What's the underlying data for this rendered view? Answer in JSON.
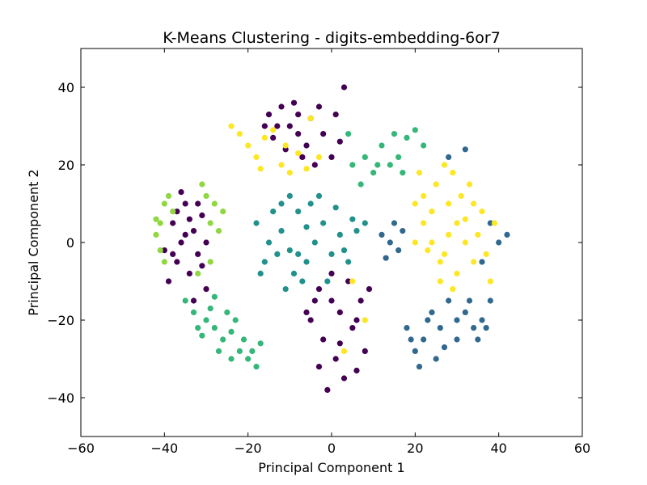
{
  "chart_data": {
    "type": "scatter",
    "title": "K-Means Clustering - digits-embedding-6or7",
    "xlabel": "Principal Component 1",
    "ylabel": "Principal Component 2",
    "xlim": [
      -60,
      60
    ],
    "ylim": [
      -50,
      50
    ],
    "xticks": [
      -60,
      -40,
      -20,
      0,
      20,
      40,
      60
    ],
    "yticks": [
      -40,
      -20,
      0,
      20,
      40
    ],
    "xtick_labels": [
      "−60",
      "−40",
      "−20",
      "0",
      "20",
      "40",
      "60"
    ],
    "ytick_labels": [
      "−40",
      "−20",
      "0",
      "20",
      "40"
    ],
    "grid": false,
    "legend": "none",
    "series": [
      {
        "color": "#440154",
        "points": [
          [
            -40,
            -2
          ],
          [
            -38,
            5
          ],
          [
            -37,
            -5
          ],
          [
            -36,
            0
          ],
          [
            -35,
            10
          ],
          [
            -34,
            -8
          ],
          [
            -33,
            3
          ],
          [
            -32,
            -3
          ],
          [
            -31,
            7
          ],
          [
            -30,
            -12
          ],
          [
            -39,
            -10
          ],
          [
            -36,
            13
          ],
          [
            -33,
            -15
          ],
          [
            -35,
            2
          ],
          [
            -37,
            8
          ],
          [
            -30,
            0
          ],
          [
            -31,
            -6
          ],
          [
            -34,
            6
          ],
          [
            -38,
            -3
          ],
          [
            -32,
            10
          ],
          [
            -15,
            33
          ],
          [
            -12,
            35
          ],
          [
            -10,
            30
          ],
          [
            -8,
            28
          ],
          [
            -6,
            25
          ],
          [
            -14,
            27
          ],
          [
            -11,
            24
          ],
          [
            -5,
            32
          ],
          [
            -3,
            35
          ],
          [
            -8,
            33
          ],
          [
            -13,
            30
          ],
          [
            -2,
            28
          ],
          [
            0,
            22
          ],
          [
            -4,
            20
          ],
          [
            2,
            26
          ],
          [
            -9,
            36
          ],
          [
            -16,
            30
          ],
          [
            -7,
            22
          ],
          [
            1,
            33
          ],
          [
            3,
            40
          ],
          [
            -3,
            -12
          ],
          [
            0,
            -15
          ],
          [
            2,
            -18
          ],
          [
            4,
            -10
          ],
          [
            6,
            -20
          ],
          [
            -5,
            -20
          ],
          [
            -2,
            -25
          ],
          [
            1,
            -30
          ],
          [
            3,
            -35
          ],
          [
            5,
            -22
          ],
          [
            8,
            -28
          ],
          [
            -1,
            -38
          ],
          [
            7,
            -15
          ],
          [
            -4,
            -15
          ],
          [
            9,
            -12
          ],
          [
            0,
            -8
          ],
          [
            -6,
            -18
          ],
          [
            2,
            -26
          ],
          [
            -3,
            -32
          ],
          [
            6,
            -33
          ]
        ]
      },
      {
        "color": "#31688e",
        "points": [
          [
            18,
            -22
          ],
          [
            20,
            -28
          ],
          [
            22,
            -25
          ],
          [
            24,
            -18
          ],
          [
            26,
            -22
          ],
          [
            28,
            -15
          ],
          [
            30,
            -20
          ],
          [
            32,
            -18
          ],
          [
            34,
            -22
          ],
          [
            36,
            -20
          ],
          [
            38,
            -15
          ],
          [
            21,
            -32
          ],
          [
            25,
            -30
          ],
          [
            30,
            -25
          ],
          [
            35,
            -25
          ],
          [
            23,
            -20
          ],
          [
            27,
            -27
          ],
          [
            33,
            -15
          ],
          [
            37,
            -22
          ],
          [
            19,
            -25
          ],
          [
            12,
            2
          ],
          [
            14,
            0
          ],
          [
            16,
            -2
          ],
          [
            13,
            -4
          ],
          [
            17,
            3
          ],
          [
            15,
            5
          ],
          [
            38,
            5
          ],
          [
            40,
            0
          ],
          [
            42,
            2
          ],
          [
            36,
            -5
          ],
          [
            28,
            22
          ],
          [
            32,
            24
          ]
        ]
      },
      {
        "color": "#21918c",
        "points": [
          [
            -18,
            5
          ],
          [
            -15,
            0
          ],
          [
            -12,
            3
          ],
          [
            -10,
            -2
          ],
          [
            -8,
            8
          ],
          [
            -6,
            -5
          ],
          [
            -4,
            0
          ],
          [
            -2,
            5
          ],
          [
            0,
            -3
          ],
          [
            2,
            2
          ],
          [
            -16,
            -5
          ],
          [
            -14,
            8
          ],
          [
            -9,
            -8
          ],
          [
            -5,
            10
          ],
          [
            -1,
            -10
          ],
          [
            4,
            -5
          ],
          [
            6,
            3
          ],
          [
            -11,
            -12
          ],
          [
            -7,
            -10
          ],
          [
            -3,
            12
          ],
          [
            -13,
            -3
          ],
          [
            -17,
            -8
          ],
          [
            -12,
            10
          ],
          [
            -6,
            4
          ],
          [
            1,
            9
          ],
          [
            3,
            -2
          ],
          [
            5,
            6
          ],
          [
            8,
            5
          ],
          [
            -10,
            12
          ],
          [
            -8,
            -3
          ]
        ]
      },
      {
        "color": "#35b779",
        "points": [
          [
            -35,
            -15
          ],
          [
            -33,
            -18
          ],
          [
            -30,
            -20
          ],
          [
            -28,
            -22
          ],
          [
            -26,
            -25
          ],
          [
            -24,
            -23
          ],
          [
            -22,
            -28
          ],
          [
            -20,
            -30
          ],
          [
            -18,
            -32
          ],
          [
            -32,
            -22
          ],
          [
            -29,
            -17
          ],
          [
            -25,
            -18
          ],
          [
            -27,
            -28
          ],
          [
            -23,
            -20
          ],
          [
            -21,
            -25
          ],
          [
            -19,
            -28
          ],
          [
            -17,
            -26
          ],
          [
            -31,
            -24
          ],
          [
            -28,
            -14
          ],
          [
            -24,
            -30
          ],
          [
            5,
            20
          ],
          [
            8,
            22
          ],
          [
            10,
            18
          ],
          [
            12,
            25
          ],
          [
            15,
            28
          ],
          [
            18,
            27
          ],
          [
            20,
            29
          ],
          [
            16,
            22
          ],
          [
            22,
            25
          ],
          [
            14,
            20
          ],
          [
            4,
            28
          ],
          [
            7,
            15
          ],
          [
            11,
            20
          ],
          [
            17,
            18
          ]
        ]
      },
      {
        "color": "#90d743",
        "points": [
          [
            -42,
            2
          ],
          [
            -41,
            5
          ],
          [
            -40,
            10
          ],
          [
            -39,
            12
          ],
          [
            -38,
            8
          ],
          [
            -29,
            5
          ],
          [
            -28,
            10
          ],
          [
            -27,
            3
          ],
          [
            -30,
            12
          ],
          [
            -31,
            15
          ],
          [
            -26,
            8
          ],
          [
            -41,
            -2
          ],
          [
            -40,
            -5
          ],
          [
            -29,
            -5
          ],
          [
            -32,
            -8
          ],
          [
            -42,
            6
          ]
        ]
      },
      {
        "color": "#fde725",
        "points": [
          [
            20,
            10
          ],
          [
            22,
            5
          ],
          [
            24,
            0
          ],
          [
            26,
            -5
          ],
          [
            28,
            10
          ],
          [
            30,
            5
          ],
          [
            32,
            0
          ],
          [
            34,
            -5
          ],
          [
            36,
            8
          ],
          [
            25,
            15
          ],
          [
            27,
            20
          ],
          [
            29,
            18
          ],
          [
            31,
            12
          ],
          [
            33,
            15
          ],
          [
            35,
            2
          ],
          [
            23,
            -2
          ],
          [
            21,
            18
          ],
          [
            26,
            -10
          ],
          [
            30,
            -8
          ],
          [
            37,
            -3
          ],
          [
            24,
            8
          ],
          [
            28,
            2
          ],
          [
            32,
            6
          ],
          [
            20,
            0
          ],
          [
            34,
            10
          ],
          [
            27,
            -3
          ],
          [
            38,
            -10
          ],
          [
            29,
            -12
          ],
          [
            22,
            12
          ],
          [
            39,
            5
          ],
          [
            -22,
            28
          ],
          [
            -20,
            25
          ],
          [
            -18,
            22
          ],
          [
            -16,
            27
          ],
          [
            -14,
            29
          ],
          [
            -12,
            20
          ],
          [
            -10,
            18
          ],
          [
            -8,
            23
          ],
          [
            -6,
            19
          ],
          [
            -5,
            32
          ],
          [
            -24,
            30
          ],
          [
            -17,
            19
          ],
          [
            -11,
            25
          ],
          [
            -3,
            22
          ],
          [
            5,
            -10
          ],
          [
            3,
            -28
          ],
          [
            8,
            -20
          ]
        ]
      }
    ]
  }
}
